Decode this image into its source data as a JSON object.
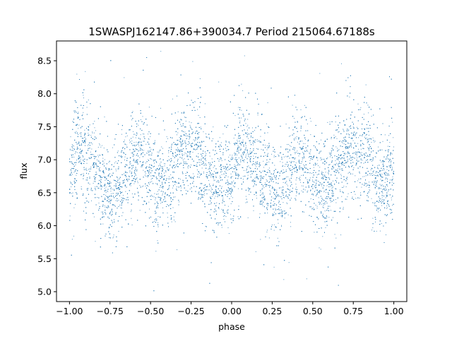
{
  "chart_data": {
    "type": "scatter",
    "title": "1SWASPJ162147.86+390034.7 Period 215064.67188s",
    "xlabel": "phase",
    "ylabel": "flux",
    "xlim": [
      -1.08,
      1.08
    ],
    "ylim": [
      4.85,
      8.8
    ],
    "grid": false,
    "x_ticks": [
      -1.0,
      -0.75,
      -0.5,
      -0.25,
      0.0,
      0.25,
      0.5,
      0.75,
      1.0
    ],
    "x_tick_labels": [
      "−1.00",
      "−0.75",
      "−0.50",
      "−0.25",
      "0.00",
      "0.25",
      "0.50",
      "0.75",
      "1.00"
    ],
    "y_ticks": [
      5.0,
      5.5,
      6.0,
      6.5,
      7.0,
      7.5,
      8.0,
      8.5
    ],
    "y_tick_labels": [
      "5.0",
      "5.5",
      "6.0",
      "6.5",
      "7.0",
      "7.5",
      "8.0",
      "8.5"
    ],
    "series": [
      {
        "color": "#1f77b4",
        "x_range": [
          -1.0,
          1.0
        ],
        "trend_x": [
          -1.0,
          -0.95,
          -0.9,
          -0.85,
          -0.8,
          -0.75,
          -0.7,
          -0.65,
          -0.6,
          -0.55,
          -0.5,
          -0.45,
          -0.4,
          -0.35,
          -0.3,
          -0.25,
          -0.2,
          -0.15,
          -0.1,
          -0.05,
          0.0,
          0.05,
          0.1,
          0.15,
          0.2,
          0.25,
          0.3,
          0.35,
          0.4,
          0.45,
          0.5,
          0.55,
          0.6,
          0.65,
          0.7,
          0.75,
          0.8,
          0.85,
          0.9,
          0.95,
          1.0
        ],
        "trend_y": [
          6.75,
          7.2,
          7.1,
          6.9,
          6.65,
          6.5,
          6.55,
          6.85,
          7.05,
          7.1,
          6.8,
          6.55,
          6.7,
          6.95,
          7.1,
          7.15,
          7.1,
          6.75,
          6.55,
          6.7,
          6.75,
          7.2,
          7.05,
          6.9,
          6.7,
          6.55,
          6.5,
          6.8,
          6.95,
          7.05,
          6.8,
          6.55,
          6.65,
          6.9,
          7.05,
          7.15,
          7.2,
          6.9,
          6.6,
          6.65,
          6.75
        ],
        "scatter_sd": 0.35
      }
    ]
  }
}
